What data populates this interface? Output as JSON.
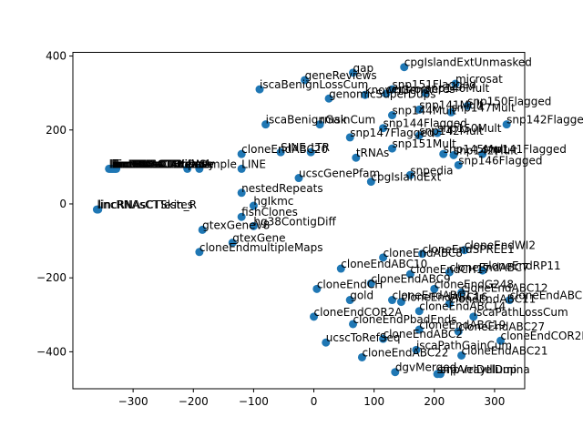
{
  "chart_data": {
    "type": "scatter",
    "title": "",
    "xlabel": "",
    "ylabel": "",
    "xlim": [
      -400,
      350
    ],
    "ylim": [
      -500,
      410
    ],
    "xticks": [
      -300,
      -200,
      -100,
      0,
      100,
      200,
      300
    ],
    "yticks": [
      -400,
      -200,
      0,
      200,
      400
    ],
    "grid": false,
    "point_color": "#1f77b4",
    "points": [
      {
        "label": "cpgIslandExtUnmasked",
        "x": 150,
        "y": 370
      },
      {
        "label": "gap",
        "x": 65,
        "y": 355
      },
      {
        "label": "geneReviews",
        "x": -15,
        "y": 335
      },
      {
        "label": "microsat",
        "x": 235,
        "y": 325
      },
      {
        "label": "snp151Flagged",
        "x": 130,
        "y": 310
      },
      {
        "label": "iscaBenignLossCum",
        "x": -90,
        "y": 310
      },
      {
        "label": "snp146Mult",
        "x": 185,
        "y": 300
      },
      {
        "label": "knownGene",
        "x": 85,
        "y": 295
      },
      {
        "label": "centromeres",
        "x": 120,
        "y": 298
      },
      {
        "label": "genomicSuperDups",
        "x": 25,
        "y": 285
      },
      {
        "label": "snp150Flagged",
        "x": 255,
        "y": 265
      },
      {
        "label": "snp141Mult",
        "x": 175,
        "y": 255
      },
      {
        "label": "snp147Mult",
        "x": 228,
        "y": 248
      },
      {
        "label": "snp144Mult",
        "x": 130,
        "y": 240
      },
      {
        "label": "iscaBenignGainCum",
        "x": -80,
        "y": 215
      },
      {
        "label": "rmsk",
        "x": 10,
        "y": 215
      },
      {
        "label": "snp142Flagged",
        "x": 320,
        "y": 215
      },
      {
        "label": "snp144Flagged",
        "x": 115,
        "y": 205
      },
      {
        "label": "snp147Flagged",
        "x": 60,
        "y": 180
      },
      {
        "label": "snp142Mult",
        "x": 175,
        "y": 185
      },
      {
        "label": "snp150Mult",
        "x": 205,
        "y": 192
      },
      {
        "label": "snp151Mult",
        "x": 130,
        "y": 150
      },
      {
        "label": "snp141Flagged",
        "x": 280,
        "y": 135
      },
      {
        "label": "snp142Mult",
        "x": 232,
        "y": 132
      },
      {
        "label": "snp145Mult",
        "x": 215,
        "y": 135
      },
      {
        "label": "SINE",
        "x": -55,
        "y": 140
      },
      {
        "label": "LTR",
        "x": -5,
        "y": 140
      },
      {
        "label": "cloneEndABC20",
        "x": -120,
        "y": 135
      },
      {
        "label": "tRNAs",
        "x": 70,
        "y": 125
      },
      {
        "label": "snp146Flagged",
        "x": 240,
        "y": 105
      },
      {
        "label": "lincRNAsCTAdipose",
        "x": -340,
        "y": 95
      },
      {
        "label": "lincRNAsCTBrain",
        "x": -338,
        "y": 95
      },
      {
        "label": "lincRNAsCTBreast",
        "x": -336,
        "y": 95
      },
      {
        "label": "lincRNAsCTColon",
        "x": -334,
        "y": 95
      },
      {
        "label": "lincRNAsCTHeart",
        "x": -332,
        "y": 95
      },
      {
        "label": "lincRNAsCTKidney",
        "x": -330,
        "y": 95
      },
      {
        "label": "lincRNAsCTLiver",
        "x": -328,
        "y": 95
      },
      {
        "label": "DNA",
        "x": -210,
        "y": 95
      },
      {
        "label": "Simple",
        "x": -190,
        "y": 95
      },
      {
        "label": "LINE",
        "x": -120,
        "y": 95
      },
      {
        "label": "snpedia",
        "x": 160,
        "y": 78
      },
      {
        "label": "ucscGenePfam",
        "x": -25,
        "y": 70
      },
      {
        "label": "cpgIslandExt",
        "x": 95,
        "y": 60
      },
      {
        "label": "nestedRepeats",
        "x": -120,
        "y": 30
      },
      {
        "label": "hgIkmc",
        "x": -100,
        "y": -5
      },
      {
        "label": "lincRNAsCTTestes",
        "x": -360,
        "y": -15
      },
      {
        "label": "lincRNAsCTSkin_R",
        "x": -358,
        "y": -15
      },
      {
        "label": "fishClones",
        "x": -120,
        "y": -35
      },
      {
        "label": "hg38ContigDiff",
        "x": -100,
        "y": -60
      },
      {
        "label": "gtexGeneV8",
        "x": -185,
        "y": -70
      },
      {
        "label": "gtexGene",
        "x": -135,
        "y": -105
      },
      {
        "label": "cloneEndmultipleMaps",
        "x": -190,
        "y": -130
      },
      {
        "label": "cloneEndABC8",
        "x": 115,
        "y": -145
      },
      {
        "label": "cloneEndSPREE1",
        "x": 180,
        "y": -135
      },
      {
        "label": "cloneEndWI2",
        "x": 250,
        "y": -125
      },
      {
        "label": "cloneEndABC10",
        "x": 45,
        "y": -175
      },
      {
        "label": "cloneEndCH17",
        "x": 160,
        "y": -190
      },
      {
        "label": "cloneEndABC7",
        "x": 225,
        "y": -185
      },
      {
        "label": "cloneEndRP11",
        "x": 280,
        "y": -180
      },
      {
        "label": "cloneEndABC9",
        "x": 95,
        "y": -215
      },
      {
        "label": "cloneEndABC12",
        "x": 245,
        "y": -240
      },
      {
        "label": "cloneEndG248",
        "x": 200,
        "y": -230
      },
      {
        "label": "cloneEndABC11",
        "x": 225,
        "y": -270
      },
      {
        "label": "cloneEndABC6",
        "x": 325,
        "y": -260
      },
      {
        "label": "cloneEndCH",
        "x": 5,
        "y": -230
      },
      {
        "label": "gold",
        "x": 60,
        "y": -260
      },
      {
        "label": "cloneEndABC13",
        "x": 130,
        "y": -260
      },
      {
        "label": "cloneEndABC16",
        "x": 145,
        "y": -265
      },
      {
        "label": "cloneEndABC14",
        "x": 175,
        "y": -290
      },
      {
        "label": "iscaPathLossCum",
        "x": 265,
        "y": -305
      },
      {
        "label": "cloneEndCOR2A",
        "x": 0,
        "y": -305
      },
      {
        "label": "cloneEndPbadEnds",
        "x": 65,
        "y": -325
      },
      {
        "label": "cloneEndABC19",
        "x": 175,
        "y": -340
      },
      {
        "label": "cloneEndABC27",
        "x": 240,
        "y": -345
      },
      {
        "label": "cloneEndABC2",
        "x": 115,
        "y": -365
      },
      {
        "label": "cloneEndCOR2B",
        "x": 310,
        "y": -370
      },
      {
        "label": "ucscToRefSeq",
        "x": 20,
        "y": -375
      },
      {
        "label": "iscaPathGainCum",
        "x": 170,
        "y": -395
      },
      {
        "label": "cloneEndABC22",
        "x": 80,
        "y": -415
      },
      {
        "label": "cloneEndABC21",
        "x": 245,
        "y": -410
      },
      {
        "label": "dgvMerged",
        "x": 135,
        "y": -455
      },
      {
        "label": "snpArrayIllumina",
        "x": 205,
        "y": -460
      },
      {
        "label": "wgRnaDelDup",
        "x": 210,
        "y": -460
      }
    ],
    "display_labels": {
      "microsat": "microsat",
      "snp150Flagged": "snp150Flagged",
      "snp142Flagged": "snp142Flagged",
      "snp141Flagged": "snp141Flagged",
      "snp146Flagged": "snp146Flagged",
      "wgRnaDelDup": "snpVelDelDup"
    }
  }
}
